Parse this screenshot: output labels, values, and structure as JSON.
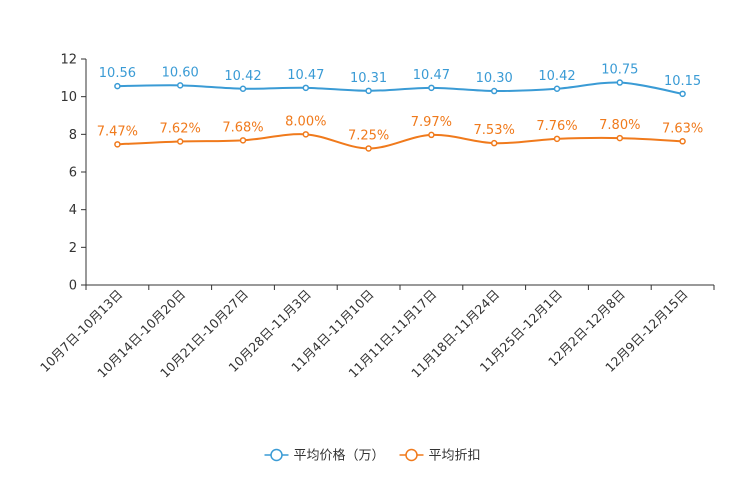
{
  "chart_data": {
    "type": "line",
    "title": "",
    "xlabel": "",
    "ylabel": "",
    "ylim": [
      0,
      12
    ],
    "yticks": [
      0,
      2,
      4,
      6,
      8,
      10,
      12
    ],
    "categories": [
      "10月7日-10月13日",
      "10月14日-10月20日",
      "10月21日-10月27日",
      "10月28日-11月3日",
      "11月4日-11月10日",
      "11月11日-11月17日",
      "11月18日-11月24日",
      "11月25日-12月1日",
      "12月2日-12月8日",
      "12月9日-12月15日"
    ],
    "series": [
      {
        "name": "平均价格（万）",
        "color": "#3a9bd5",
        "values": [
          10.56,
          10.6,
          10.42,
          10.47,
          10.31,
          10.47,
          10.3,
          10.42,
          10.75,
          10.15
        ],
        "labels": [
          "10.56",
          "10.60",
          "10.42",
          "10.47",
          "10.31",
          "10.47",
          "10.30",
          "10.42",
          "10.75",
          "10.15"
        ]
      },
      {
        "name": "平均折扣",
        "color": "#f07a1c",
        "values": [
          7.47,
          7.62,
          7.68,
          8.0,
          7.25,
          7.97,
          7.53,
          7.76,
          7.8,
          7.63
        ],
        "labels": [
          "7.47%",
          "7.62%",
          "7.68%",
          "8.00%",
          "7.25%",
          "7.97%",
          "7.53%",
          "7.76%",
          "7.80%",
          "7.63%"
        ]
      }
    ],
    "legend_position": "bottom-center"
  }
}
